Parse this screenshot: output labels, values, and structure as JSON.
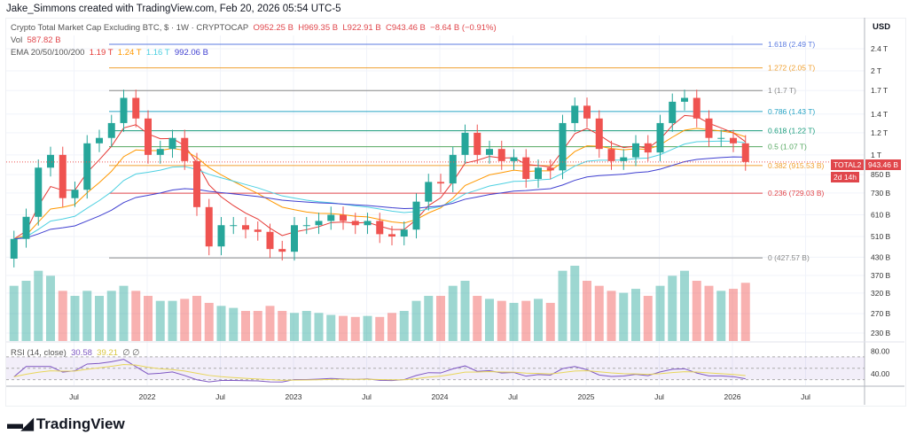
{
  "credit": "Jake_Simmons created with TradingView.com, Feb 20, 2026 05:54 UTC-5",
  "legend": {
    "symbol": "Crypto Total Market Cap Excluding BTC, $ · 1W · CRYPTOCAP",
    "o": "O952.25 B",
    "h": "H969.35 B",
    "l": "L922.91 B",
    "c": "C943.46 B",
    "chg": "−8.64 B (−0.91%)",
    "vol_label": "Vol",
    "vol": "587.82 B",
    "ema_label": "EMA 20/50/100/200",
    "ema20": "1.19 T",
    "ema50": "1.24 T",
    "ema100": "1.16 T",
    "ema200": "992.06 B",
    "rsi_label": "RSI (14, close)",
    "rsi": "30.58",
    "rsi_ma": "39.21",
    "rsi_extra": "∅ ∅"
  },
  "colors": {
    "up": "#26a69a",
    "down": "#ef5350",
    "ema20": "#e53935",
    "ema50": "#ff9800",
    "ema100": "#4dd0e1",
    "ema200": "#3f3fd0",
    "rsi": "#7e57c2",
    "rsi_ma": "#e8d65a"
  },
  "currency": "USD",
  "price_tag": {
    "symbol": "TOTAL2",
    "price": "943.46 B",
    "countdown": "2d 14h"
  },
  "logo": "TradingView",
  "chart_data": {
    "type": "candlestick",
    "yscale": "log",
    "ylim_billions": [
      215,
      2600
    ],
    "y_ticks": [
      "2.4 T",
      "2 T",
      "1.7 T",
      "1.4 T",
      "1.2 T",
      "1 T",
      "850 B",
      "730 B",
      "610 B",
      "510 B",
      "430 B",
      "370 B",
      "320 B",
      "270 B",
      "230 B"
    ],
    "y_tick_values": [
      2400,
      2000,
      1700,
      1400,
      1200,
      1000,
      850,
      730,
      610,
      510,
      430,
      370,
      320,
      270,
      230
    ],
    "rsi_ticks": [
      "80.00",
      "40.00"
    ],
    "x_ticks": [
      "Jul",
      "2022",
      "Jul",
      "2023",
      "Jul",
      "2024",
      "Jul",
      "2025",
      "Jul",
      "2026",
      "Jul"
    ],
    "x_tick_years": [
      2021.5,
      2022,
      2022.5,
      2023,
      2023.5,
      2024,
      2024.5,
      2025,
      2025.5,
      2026,
      2026.5
    ],
    "start": "2021-02",
    "monthly_close_billions": [
      500,
      600,
      900,
      1000,
      700,
      750,
      1100,
      1150,
      1300,
      1600,
      1350,
      1000,
      1050,
      1150,
      950,
      650,
      470,
      560,
      560,
      540,
      530,
      460,
      450,
      560,
      560,
      580,
      610,
      580,
      560,
      580,
      520,
      510,
      540,
      680,
      800,
      790,
      1000,
      1200,
      1000,
      1050,
      950,
      980,
      820,
      900,
      880,
      1300,
      1500,
      1350,
      1050,
      950,
      980,
      1100,
      1020,
      1300,
      1550,
      1600,
      1350,
      1150,
      1150,
      1100,
      943.46
    ],
    "monthly_volume_relative": [
      55,
      60,
      70,
      65,
      50,
      45,
      50,
      45,
      50,
      55,
      50,
      45,
      40,
      40,
      42,
      45,
      38,
      35,
      33,
      30,
      30,
      35,
      30,
      28,
      30,
      28,
      26,
      25,
      24,
      25,
      24,
      28,
      30,
      40,
      45,
      45,
      55,
      60,
      45,
      42,
      40,
      38,
      40,
      42,
      38,
      70,
      75,
      60,
      55,
      50,
      48,
      52,
      45,
      55,
      65,
      70,
      60,
      55,
      50,
      52,
      58
    ],
    "fib_levels": [
      {
        "label": "1.618 (2.49 T)",
        "value": 2490,
        "color": "#5b7be0"
      },
      {
        "label": "1.272 (2.05 T)",
        "value": 2050,
        "color": "#f0a030"
      },
      {
        "label": "1 (1.7 T)",
        "value": 1700,
        "color": "#888888"
      },
      {
        "label": "0.786 (1.43 T)",
        "value": 1430,
        "color": "#26a3c4"
      },
      {
        "label": "0.618 (1.22 T)",
        "value": 1220,
        "color": "#159a7a"
      },
      {
        "label": "0.5 (1.07 T)",
        "value": 1070,
        "color": "#55a860"
      },
      {
        "label": "0.382 (915.53 B)",
        "value": 915.53,
        "color": "#f0a030"
      },
      {
        "label": "0.236 (729.03 B)",
        "value": 729.03,
        "color": "#e0464b"
      },
      {
        "label": "0 (427.57 B)",
        "value": 427.57,
        "color": "#888888"
      }
    ]
  }
}
